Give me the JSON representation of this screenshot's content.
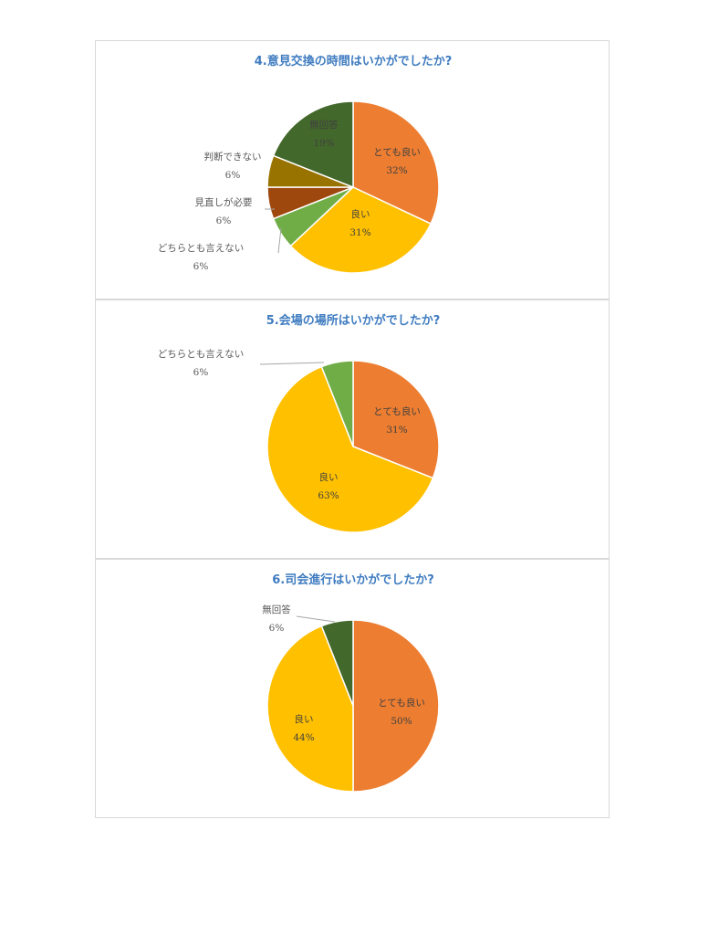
{
  "chart_data": [
    {
      "type": "pie",
      "title": "4.意見交換の時間はいかがでしたか?",
      "categories": [
        "とても良い",
        "良い",
        "どちらとも言えない",
        "見直しが必要",
        "判断できない",
        "無回答"
      ],
      "values": [
        32,
        31,
        6,
        6,
        6,
        19
      ],
      "labels": [
        "32%",
        "31%",
        "6%",
        "6%",
        "6%",
        "19%"
      ],
      "colors": [
        "#ed7d31",
        "#ffc000",
        "#70ad47",
        "#9e480e",
        "#997300",
        "#43682b"
      ]
    },
    {
      "type": "pie",
      "title": "5.会場の場所はいかがでしたか?",
      "categories": [
        "とても良い",
        "良い",
        "どちらとも言えない"
      ],
      "values": [
        31,
        63,
        6
      ],
      "labels": [
        "31%",
        "63%",
        "6%"
      ],
      "colors": [
        "#ed7d31",
        "#ffc000",
        "#70ad47"
      ]
    },
    {
      "type": "pie",
      "title": "6.司会進行はいかがでしたか?",
      "categories": [
        "とても良い",
        "良い",
        "無回答"
      ],
      "values": [
        50,
        44,
        6
      ],
      "labels": [
        "50%",
        "44%",
        "6%"
      ],
      "colors": [
        "#ed7d31",
        "#ffc000",
        "#43682b"
      ]
    }
  ]
}
